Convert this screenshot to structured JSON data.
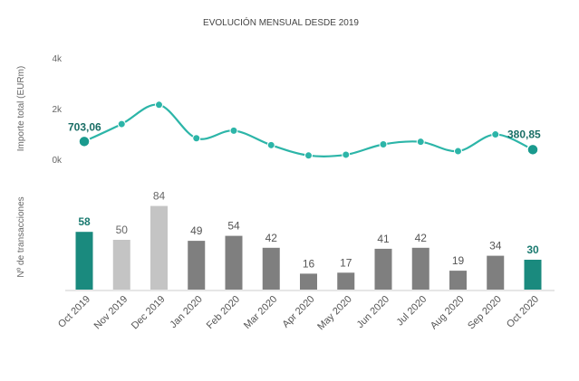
{
  "chart_data": {
    "type": "line+bar",
    "title": "EVOLUCIÓN MENSUAL DESDE 2019",
    "categories": [
      "Oct 2019",
      "Nov 2019",
      "Dec 2019",
      "Jan 2020",
      "Feb 2020",
      "Mar 2020",
      "Apr 2020",
      "May 2020",
      "Jun 2020",
      "Jul 2020",
      "Aug 2020",
      "Sep 2020",
      "Oct 2020"
    ],
    "line": {
      "ylabel": "Importe total (EURm)",
      "yticks": [
        "0k",
        "2k",
        "4k"
      ],
      "ylim": [
        0,
        4000
      ],
      "values": [
        703.06,
        1390,
        2150,
        830,
        1130,
        560,
        150,
        180,
        590,
        690,
        320,
        980,
        380.85
      ],
      "labels": {
        "first": "703,06",
        "last": "380,85"
      },
      "color": "#2cb5a8"
    },
    "bars": {
      "ylabel": "Nº de transacciones",
      "values": [
        58,
        50,
        84,
        49,
        54,
        42,
        16,
        17,
        41,
        42,
        19,
        34,
        30
      ],
      "colors": [
        "#1a8a7e",
        "#c4c4c4",
        "#c4c4c4",
        "#7f7f7f",
        "#7f7f7f",
        "#7f7f7f",
        "#7f7f7f",
        "#7f7f7f",
        "#7f7f7f",
        "#7f7f7f",
        "#7f7f7f",
        "#7f7f7f",
        "#1a8a7e"
      ],
      "label_colors": [
        "#1a7a70",
        "#666666",
        "#666666",
        "#555555",
        "#555555",
        "#555555",
        "#555555",
        "#555555",
        "#555555",
        "#555555",
        "#555555",
        "#555555",
        "#1a7a70"
      ]
    },
    "grid": false,
    "legend": "none"
  }
}
